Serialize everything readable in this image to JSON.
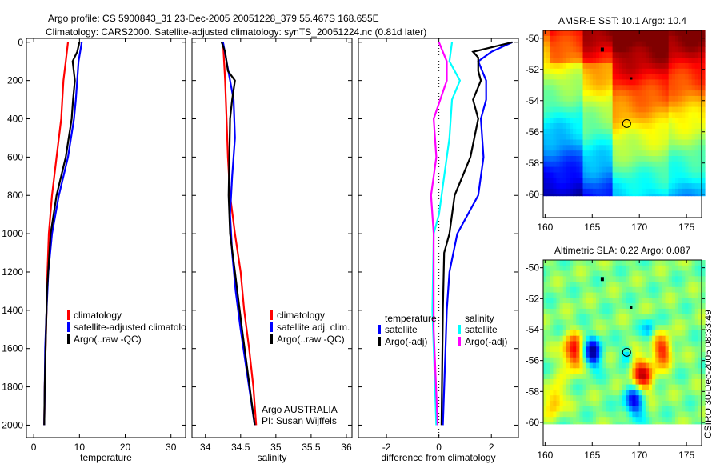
{
  "title_line1": "Argo profile: CS 5900843_31 23-Dec-2005 20051228_379 55.467S 168.655E",
  "title_line2": "Climatology: CARS2000. Satellite-adjusted climatology: synTS_20051224.nc (0.81d later)",
  "side_stamp": "CSIRO 30-Dec-2005 08:33:49",
  "chart_data": [
    {
      "type": "line",
      "xlabel": "temperature",
      "xlim": [
        -1.6,
        33.2
      ],
      "xticks": [
        0,
        10,
        20,
        30
      ],
      "ylim": [
        -20,
        2065
      ],
      "yticks": [
        0,
        200,
        400,
        600,
        800,
        1000,
        1200,
        1400,
        1600,
        1800,
        2000
      ],
      "y_reversed": true,
      "legend": "lower-middle",
      "series": [
        {
          "name": "climatology",
          "color": "#ff0000",
          "x": [
            7.5,
            7.0,
            6.5,
            6.0,
            5.0,
            4.0,
            3.3,
            3.0,
            2.8,
            2.6,
            2.4,
            2.3
          ],
          "y": [
            0,
            100,
            200,
            400,
            600,
            800,
            1000,
            1200,
            1400,
            1600,
            1800,
            2000
          ]
        },
        {
          "name": "satellite-adjusted climatology",
          "color": "#0000ff",
          "x": [
            10.5,
            9.8,
            9.5,
            9.2,
            8.8,
            7.5,
            5.5,
            4.0,
            3.2,
            2.8,
            2.5,
            2.4,
            2.3
          ],
          "y": [
            0,
            100,
            200,
            300,
            400,
            600,
            800,
            1000,
            1200,
            1400,
            1600,
            1800,
            2000
          ]
        },
        {
          "name": "Argo(..raw -QC)",
          "color": "#000000",
          "x": [
            10.0,
            9.5,
            8.5,
            9.0,
            8.6,
            8.3,
            7.0,
            5.0,
            3.7,
            2.9,
            2.6,
            2.4,
            2.3
          ],
          "y": [
            0,
            50,
            100,
            200,
            300,
            400,
            600,
            800,
            1000,
            1300,
            1600,
            1800,
            2000
          ]
        }
      ]
    },
    {
      "type": "line",
      "xlabel": "salinity",
      "xlim": [
        33.81,
        36.08
      ],
      "xticks": [
        34,
        34.5,
        35,
        35.5,
        36
      ],
      "ylim": [
        -20,
        2065
      ],
      "y_reversed": true,
      "legend": "lower-right",
      "annotations": [
        "Argo AUSTRALIA",
        "PI: Susan Wijffels"
      ],
      "series": [
        {
          "name": "climatology",
          "color": "#ff0000",
          "x": [
            34.25,
            34.28,
            34.3,
            34.32,
            34.35,
            34.42,
            34.5,
            34.55,
            34.62,
            34.68,
            34.72
          ],
          "y": [
            0,
            200,
            400,
            600,
            800,
            1000,
            1200,
            1400,
            1600,
            1800,
            2000
          ]
        },
        {
          "name": "satellite adj. clim.",
          "color": "#0000ff",
          "x": [
            34.25,
            34.3,
            34.35,
            34.4,
            34.42,
            34.38,
            34.35,
            34.38,
            34.43,
            34.5,
            34.58,
            34.7
          ],
          "y": [
            0,
            100,
            200,
            300,
            500,
            700,
            900,
            1100,
            1300,
            1500,
            1700,
            2000
          ]
        },
        {
          "name": "Argo(..raw -QC)",
          "color": "#000000",
          "x": [
            34.23,
            34.28,
            34.32,
            34.42,
            34.38,
            34.35,
            34.34,
            34.33,
            34.35,
            34.42,
            34.52,
            34.7
          ],
          "y": [
            0,
            50,
            150,
            200,
            300,
            400,
            600,
            800,
            1000,
            1200,
            1500,
            2000
          ]
        }
      ]
    },
    {
      "type": "line",
      "xlabel": "difference from climatology",
      "xlim": [
        -3.07,
        3.03
      ],
      "xticks": [
        -2,
        0,
        2
      ],
      "ylim": [
        -20,
        2065
      ],
      "y_reversed": true,
      "legend": "lower-middle",
      "legend_groups": [
        "temperature",
        "salinity"
      ],
      "series": [
        {
          "name": "satellite",
          "group": "temperature",
          "color": "#0000ff",
          "x": [
            2.8,
            2.0,
            1.5,
            1.8,
            1.8,
            1.6,
            1.7,
            1.5,
            0.7,
            0.4,
            0.3,
            0.25,
            0.15
          ],
          "y": [
            0,
            50,
            100,
            200,
            300,
            400,
            600,
            800,
            1000,
            1200,
            1400,
            1600,
            2000
          ]
        },
        {
          "name": "Argo(-adj)",
          "group": "temperature",
          "color": "#000000",
          "x": [
            2.8,
            1.3,
            1.5,
            1.5,
            1.6,
            1.3,
            1.5,
            1.2,
            0.9,
            0.6,
            0.4,
            0.2,
            0.15,
            0.1
          ],
          "y": [
            0,
            50,
            80,
            150,
            200,
            300,
            400,
            600,
            700,
            800,
            1000,
            1100,
            1400,
            2000
          ]
        },
        {
          "name": "satellite",
          "group": "salinity",
          "color": "#00ffff",
          "x": [
            0.5,
            0.4,
            0.8,
            0.5,
            0.4,
            0.2,
            0.0,
            -0.2,
            -0.25,
            -0.1
          ],
          "y": [
            0,
            100,
            200,
            300,
            500,
            700,
            900,
            1000,
            1400,
            2000
          ]
        },
        {
          "name": "Argo(-adj)",
          "group": "salinity",
          "color": "#ff00ff",
          "x": [
            0.0,
            0.3,
            0.3,
            -0.2,
            -0.1,
            -0.3,
            -0.2,
            -0.2,
            -0.05
          ],
          "y": [
            0,
            100,
            200,
            400,
            600,
            800,
            1000,
            1500,
            2000
          ]
        }
      ]
    },
    {
      "type": "heatmap",
      "title": "AMSR-E SST: 10.1 Argo: 10.4",
      "xlim": [
        159.8,
        176.6
      ],
      "xticks": [
        160,
        165,
        170,
        175
      ],
      "ylim": [
        -61.5,
        -49.5
      ],
      "yticks": [
        -50,
        -52,
        -54,
        -56,
        -58,
        -60
      ],
      "profile_location": [
        168.655,
        -55.467
      ]
    },
    {
      "type": "heatmap",
      "title": "Altimetric SLA: 0.22 Argo: 0.087",
      "xlim": [
        159.8,
        176.6
      ],
      "xticks": [
        160,
        165,
        170,
        175
      ],
      "ylim": [
        -61.5,
        -49.5
      ],
      "yticks": [
        -50,
        -52,
        -54,
        -56,
        -58,
        -60
      ],
      "profile_location": [
        168.655,
        -55.467
      ]
    }
  ]
}
